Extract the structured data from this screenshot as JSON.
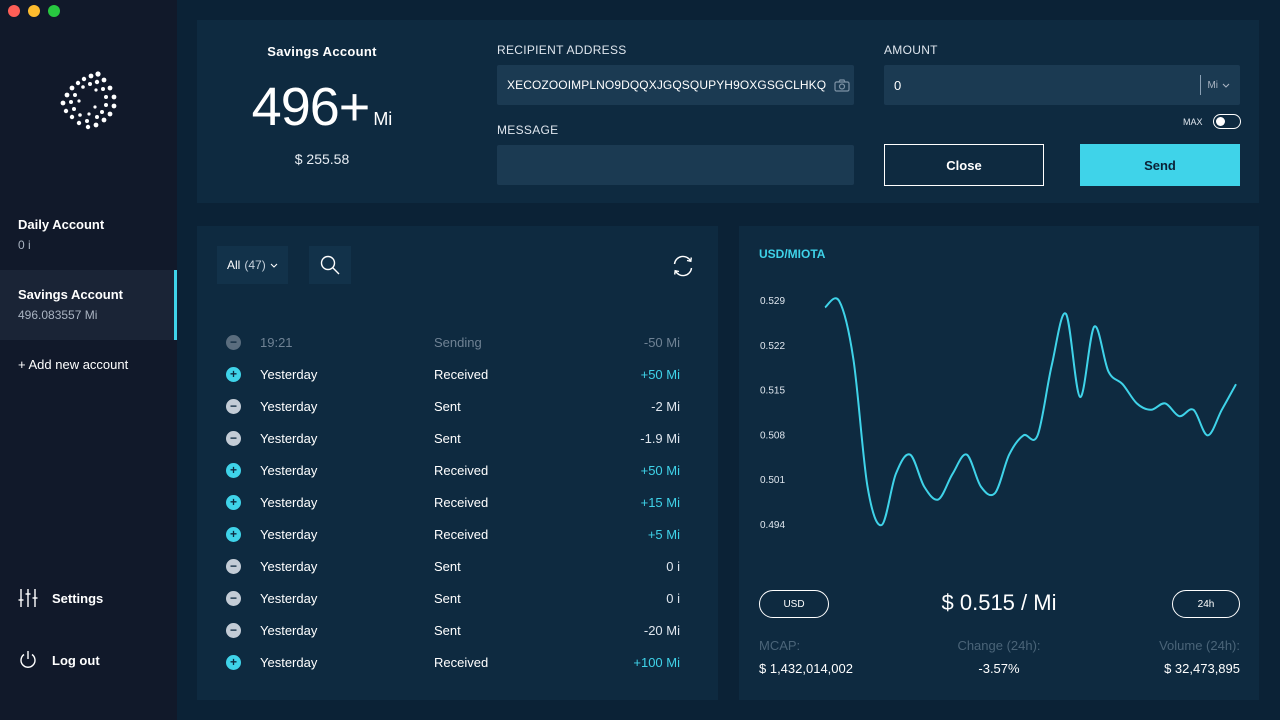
{
  "sidebar": {
    "accounts": [
      {
        "name": "Daily Account",
        "balance": "0 i"
      },
      {
        "name": "Savings Account",
        "balance": "496.083557 Mi"
      }
    ],
    "add_account": "+ Add new account",
    "settings": "Settings",
    "logout": "Log out"
  },
  "send_panel": {
    "account_title": "Savings Account",
    "balance_value": "496+",
    "balance_unit": "Mi",
    "fiat_balance": "$ 255.58",
    "recipient_label": "RECIPIENT ADDRESS",
    "recipient_value": "XECOZOOIMPLNO9DQQXJGQSQUPYH9OXGSGCLHKQ",
    "message_label": "MESSAGE",
    "message_value": "",
    "amount_label": "AMOUNT",
    "amount_value": "0",
    "amount_unit": "Mi",
    "max_label": "MAX",
    "close_label": "Close",
    "send_label": "Send"
  },
  "history": {
    "filter_label": "All",
    "filter_count": "(47)",
    "transactions": [
      {
        "time": "19:21",
        "status": "Sending",
        "amount": "-50 Mi",
        "type": "pending"
      },
      {
        "time": "Yesterday",
        "status": "Received",
        "amount": "+50 Mi",
        "type": "received"
      },
      {
        "time": "Yesterday",
        "status": "Sent",
        "amount": "-2 Mi",
        "type": "sent"
      },
      {
        "time": "Yesterday",
        "status": "Sent",
        "amount": "-1.9 Mi",
        "type": "sent"
      },
      {
        "time": "Yesterday",
        "status": "Received",
        "amount": "+50 Mi",
        "type": "received"
      },
      {
        "time": "Yesterday",
        "status": "Received",
        "amount": "+15 Mi",
        "type": "received"
      },
      {
        "time": "Yesterday",
        "status": "Received",
        "amount": "+5 Mi",
        "type": "received"
      },
      {
        "time": "Yesterday",
        "status": "Sent",
        "amount": "0 i",
        "type": "sent"
      },
      {
        "time": "Yesterday",
        "status": "Sent",
        "amount": "0 i",
        "type": "sent"
      },
      {
        "time": "Yesterday",
        "status": "Sent",
        "amount": "-20 Mi",
        "type": "sent"
      },
      {
        "time": "Yesterday",
        "status": "Received",
        "amount": "+100 Mi",
        "type": "received"
      }
    ]
  },
  "market": {
    "currency_button": "USD",
    "timeframe_button": "24h",
    "price": "$ 0.515 / Mi",
    "mcap_label": "MCAP:",
    "mcap_value": "$ 1,432,014,002",
    "change_label": "Change (24h):",
    "change_value": "-3.57%",
    "volume_label": "Volume (24h):",
    "volume_value": "$ 32,473,895"
  },
  "chart_data": {
    "type": "line",
    "title": "USD/MIOTA",
    "y_ticks": [
      "0.529",
      "0.522",
      "0.515",
      "0.508",
      "0.501",
      "0.494"
    ],
    "ylim": [
      0.494,
      0.529
    ],
    "line_color": "#3fd3e9",
    "grid": false,
    "values": [
      0.528,
      0.529,
      0.52,
      0.5,
      0.494,
      0.502,
      0.505,
      0.5,
      0.498,
      0.502,
      0.505,
      0.5,
      0.499,
      0.505,
      0.508,
      0.508,
      0.519,
      0.527,
      0.514,
      0.525,
      0.518,
      0.516,
      0.513,
      0.512,
      0.513,
      0.511,
      0.512,
      0.508,
      0.512,
      0.516
    ]
  },
  "colors": {
    "accent": "#3fd3e9",
    "background": "#0b2236",
    "sidebar": "#11192a",
    "panel": "#0e2a40"
  }
}
